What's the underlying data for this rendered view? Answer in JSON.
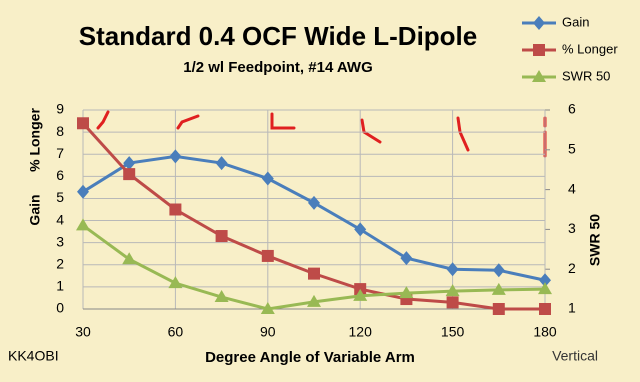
{
  "chart_data": {
    "type": "line",
    "title": "Standard 0.4 OCF Wide L-Dipole",
    "subtitle": "1/2 wl Feedpoint, #14 AWG",
    "xlabel": "Degree Angle of Variable Arm",
    "ylabels": [
      "Gain",
      "% Longer"
    ],
    "y2label": "SWR 50",
    "annotations": [
      "KK4OBI",
      "Vertical"
    ],
    "x": [
      30,
      45,
      60,
      75,
      90,
      105,
      120,
      135,
      150,
      165,
      180
    ],
    "xlim": [
      30,
      180
    ],
    "xticks": [
      30,
      60,
      90,
      120,
      150,
      180
    ],
    "ylim": [
      0,
      9
    ],
    "yticks": [
      0,
      1,
      2,
      3,
      4,
      5,
      6,
      7,
      8,
      9
    ],
    "y2lim": [
      1,
      6
    ],
    "y2ticks": [
      1,
      2,
      3,
      4,
      5,
      6
    ],
    "grid": true,
    "legend": "top-right",
    "series": [
      {
        "name": "Gain",
        "color": "#4a7ebb",
        "marker": "diamond",
        "values": [
          5.3,
          6.6,
          6.9,
          6.6,
          5.9,
          4.8,
          3.6,
          2.3,
          1.8,
          1.75,
          1.3
        ]
      },
      {
        "name": "% Longer",
        "color": "#be4b48",
        "marker": "square",
        "values": [
          8.4,
          6.1,
          4.5,
          3.3,
          2.4,
          1.6,
          0.9,
          0.45,
          0.3,
          0,
          0
        ]
      },
      {
        "name": "SWR 50",
        "color": "#98b954",
        "marker": "triangle",
        "axis": "y2",
        "values": [
          3.1,
          2.25,
          1.65,
          1.3,
          1.0,
          1.18,
          1.33,
          1.4,
          1.45,
          1.48,
          1.5
        ]
      }
    ]
  }
}
